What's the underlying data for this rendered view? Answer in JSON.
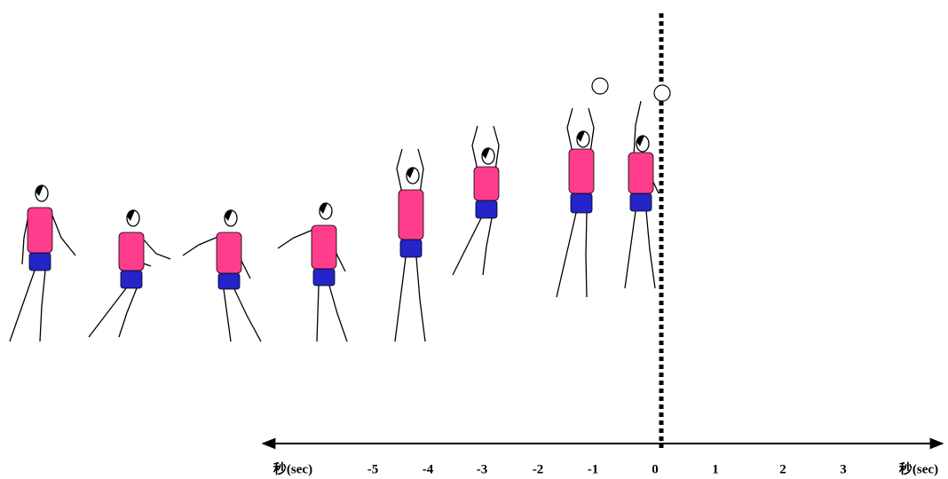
{
  "axis": {
    "labels": [
      "秒(sec)",
      "-5",
      "-4",
      "-3",
      "-2",
      "-1",
      "0",
      "1",
      "2",
      "3",
      "秒(sec)"
    ]
  }
}
